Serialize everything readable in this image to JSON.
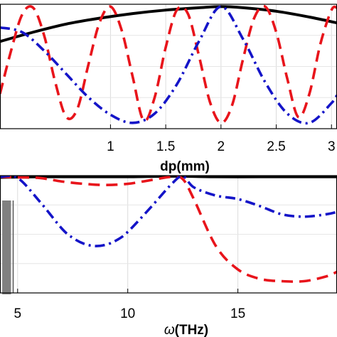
{
  "chart_data": [
    {
      "type": "line",
      "xlabel": "dp(mm)",
      "xlim": [
        0.0,
        3.05
      ],
      "ylim": [
        -0.05,
        1.02
      ],
      "xticks": [
        1,
        1.5,
        2,
        2.5,
        3
      ],
      "xtick_labels": [
        "1",
        "1.5",
        "2",
        "2.5",
        "3"
      ],
      "grid": true,
      "series": [
        {
          "style": "solid",
          "color": "#000000",
          "x": [
            0.0,
            0.3,
            0.6,
            0.9,
            1.2,
            1.5,
            1.8,
            2.0,
            2.2,
            2.5,
            2.8,
            3.05
          ],
          "y": [
            0.7,
            0.78,
            0.85,
            0.9,
            0.94,
            0.97,
            0.99,
            1.0,
            0.99,
            0.96,
            0.91,
            0.86
          ]
        },
        {
          "style": "dash",
          "color": "#e8141b",
          "x": [
            0.0,
            0.1,
            0.2,
            0.3,
            0.4,
            0.5,
            0.6,
            0.7,
            0.8,
            0.9,
            1.0,
            1.1,
            1.2,
            1.3,
            1.4,
            1.5,
            1.6,
            1.7,
            1.8,
            1.9,
            2.0,
            2.1,
            2.2,
            2.3,
            2.4,
            2.5,
            2.6,
            2.7,
            2.8,
            2.9,
            3.0,
            3.05
          ],
          "y": [
            0.25,
            0.62,
            0.93,
            0.99,
            0.75,
            0.35,
            0.05,
            0.12,
            0.5,
            0.86,
            1.0,
            0.8,
            0.4,
            0.02,
            0.22,
            0.65,
            0.97,
            0.94,
            0.58,
            0.18,
            0.0,
            0.15,
            0.55,
            0.9,
            1.0,
            0.78,
            0.38,
            0.05,
            0.25,
            0.68,
            0.97,
            0.99
          ]
        },
        {
          "style": "dashdot",
          "color": "#1414c8",
          "x": [
            0.0,
            0.2,
            0.4,
            0.6,
            0.8,
            1.0,
            1.2,
            1.4,
            1.6,
            1.8,
            2.0,
            2.2,
            2.4,
            2.6,
            2.8,
            3.0,
            3.05
          ],
          "y": [
            0.82,
            0.78,
            0.62,
            0.42,
            0.22,
            0.07,
            0.0,
            0.08,
            0.33,
            0.7,
            1.0,
            0.72,
            0.35,
            0.08,
            0.0,
            0.17,
            0.24
          ]
        }
      ]
    },
    {
      "type": "line",
      "xlabel": "ω(THz)",
      "xlim": [
        4.2,
        19.5
      ],
      "ylim": [
        0.0,
        1.0
      ],
      "xticks": [
        5,
        10,
        15
      ],
      "xtick_labels": [
        "5",
        "10",
        "15"
      ],
      "grid": true,
      "series": [
        {
          "style": "solid",
          "color": "#000000",
          "x": [
            4.2,
            6.0,
            8.0,
            10.0,
            12.0,
            14.0,
            16.0,
            18.0,
            19.5
          ],
          "y": [
            0.985,
            0.99,
            0.99,
            0.99,
            0.995,
            0.99,
            0.99,
            0.99,
            0.99
          ]
        },
        {
          "style": "dash",
          "color": "#e8141b",
          "x": [
            4.2,
            5.0,
            6.0,
            7.0,
            8.0,
            9.0,
            10.0,
            11.0,
            12.0,
            12.5,
            13.0,
            14.0,
            15.0,
            16.0,
            17.0,
            18.0,
            19.0,
            19.5
          ],
          "y": [
            0.99,
            0.985,
            0.98,
            0.95,
            0.93,
            0.92,
            0.93,
            0.96,
            0.99,
            0.97,
            0.8,
            0.4,
            0.2,
            0.12,
            0.1,
            0.1,
            0.14,
            0.18
          ]
        },
        {
          "style": "dashdot",
          "color": "#1414c8",
          "x": [
            4.2,
            5.0,
            6.0,
            7.0,
            7.5,
            8.0,
            8.5,
            9.0,
            9.5,
            10.0,
            11.0,
            12.0,
            12.5,
            13.0,
            14.0,
            15.0,
            16.0,
            17.0,
            18.0,
            19.0,
            19.5
          ],
          "y": [
            0.99,
            0.98,
            0.78,
            0.55,
            0.47,
            0.42,
            0.4,
            0.41,
            0.45,
            0.52,
            0.72,
            0.93,
            0.995,
            0.9,
            0.83,
            0.8,
            0.74,
            0.67,
            0.65,
            0.67,
            0.69
          ]
        }
      ],
      "band": {
        "x_range": [
          4.3,
          4.7
        ],
        "color": "#808080"
      }
    }
  ]
}
